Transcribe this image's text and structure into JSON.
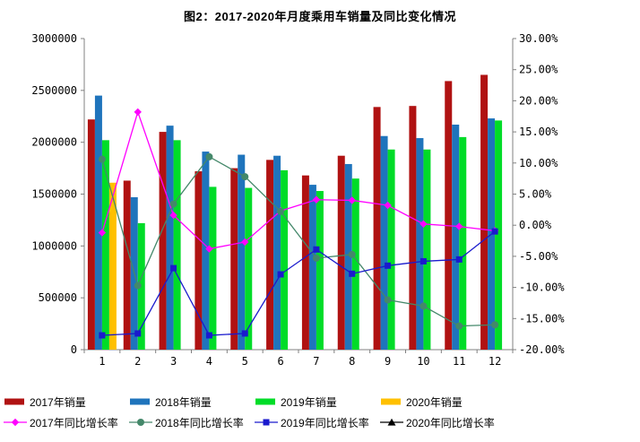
{
  "title": "图2：2017-2020年月度乘用车销量及同比变化情况",
  "chart_data": {
    "type": "combo",
    "title": "图2：2017-2020年月度乘用车销量及同比变化情况",
    "categories": [
      1,
      2,
      3,
      4,
      5,
      6,
      7,
      8,
      9,
      10,
      11,
      12
    ],
    "x_tick_labels": [
      "1",
      "2",
      "3",
      "4",
      "5",
      "6",
      "7",
      "8",
      "9",
      "10",
      "11",
      "12"
    ],
    "bar_series": [
      {
        "name": "2017年销量",
        "color": "#B01212",
        "values": [
          2220000,
          1630000,
          2100000,
          1720000,
          1750000,
          1830000,
          1680000,
          1870000,
          2340000,
          2350000,
          2590000,
          2650000
        ]
      },
      {
        "name": "2018年销量",
        "color": "#1F74BC",
        "values": [
          2450000,
          1470000,
          2160000,
          1910000,
          1880000,
          1870000,
          1590000,
          1790000,
          2060000,
          2040000,
          2170000,
          2230000
        ]
      },
      {
        "name": "2019年销量",
        "color": "#00DC28",
        "values": [
          2020000,
          1220000,
          2020000,
          1570000,
          1560000,
          1730000,
          1530000,
          1650000,
          1930000,
          1930000,
          2050000,
          2210000
        ]
      },
      {
        "name": "2020年销量",
        "color": "#FFC000",
        "values": [
          1610000,
          null,
          null,
          null,
          null,
          null,
          null,
          null,
          null,
          null,
          null,
          null
        ]
      }
    ],
    "line_series": [
      {
        "name": "2017年同比增长率",
        "color": "#FF00FF",
        "marker": "diamond",
        "values": [
          -1.2,
          18.2,
          1.6,
          -3.8,
          -2.7,
          2.3,
          4.1,
          4.0,
          3.2,
          0.2,
          -0.2,
          -0.9
        ]
      },
      {
        "name": "2018年同比增长率",
        "color": "#44886A",
        "marker": "circle",
        "values": [
          10.6,
          -9.7,
          3.4,
          11.0,
          7.8,
          2.2,
          -5.3,
          -4.7,
          -12.0,
          -13.0,
          -16.2,
          -16.0
        ]
      },
      {
        "name": "2019年同比增长率",
        "color": "#1A1ACD",
        "marker": "square",
        "values": [
          -17.7,
          -17.4,
          -6.9,
          -17.7,
          -17.4,
          -7.9,
          -3.9,
          -7.8,
          -6.5,
          -5.8,
          -5.5,
          -1.0
        ]
      },
      {
        "name": "2020年同比增长率",
        "color": "#000000",
        "marker": "triangle",
        "values": [
          null,
          null,
          null,
          null,
          null,
          null,
          null,
          null,
          null,
          null,
          null,
          null
        ]
      }
    ],
    "left_axis": {
      "min": 0,
      "max": 3000000,
      "step": 500000,
      "tick_labels": [
        "3000000",
        "2500000",
        "2000000",
        "1500000",
        "1000000",
        "500000",
        "0"
      ]
    },
    "right_axis": {
      "min": -20,
      "max": 30,
      "step": 5,
      "tick_labels": [
        "30.00%",
        "25.00%",
        "20.00%",
        "15.00%",
        "10.00%",
        "5.00%",
        "0.00%",
        "-5.00%",
        "-10.00%",
        "-15.00%",
        "-20.00%"
      ]
    },
    "grid": false,
    "legend_position": "bottom",
    "axis_color": "#808080",
    "plot_background": "#FFFFFF"
  }
}
